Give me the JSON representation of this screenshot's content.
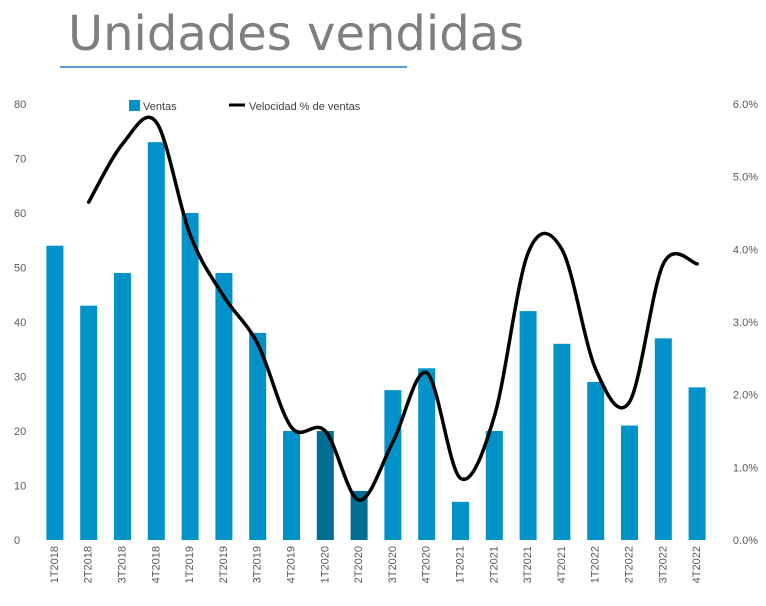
{
  "title": "Unidades vendidas",
  "chart_data": {
    "type": "bar",
    "title": "Unidades vendidas",
    "categories": [
      "1T2018",
      "2T2018",
      "3T2018",
      "4T2018",
      "1T2019",
      "2T2019",
      "3T2019",
      "4T2019",
      "1T2020",
      "2T2020",
      "3T2020",
      "4T2020",
      "1T2021",
      "2T2021",
      "3T2021",
      "4T2021",
      "1T2022",
      "2T2022",
      "3T2022",
      "4T2022"
    ],
    "series": [
      {
        "name": "Ventas",
        "type": "bar",
        "axis": "left",
        "color": "#0092c8",
        "values": [
          54,
          43,
          49,
          73,
          60,
          49,
          38,
          20,
          20,
          9,
          27.5,
          31.5,
          7,
          20,
          42,
          36,
          29,
          21,
          37,
          28
        ]
      },
      {
        "name": "Velocidad % de ventas",
        "type": "line",
        "axis": "right",
        "color": "#000000",
        "values": [
          null,
          4.65,
          5.45,
          5.75,
          4.2,
          3.35,
          2.7,
          1.55,
          1.5,
          0.55,
          1.35,
          2.3,
          0.85,
          1.7,
          3.95,
          4.0,
          2.35,
          1.9,
          3.8,
          3.8
        ]
      }
    ],
    "highlight_color": "#006d93",
    "highlight_indices": [
      8,
      9
    ],
    "y_left": {
      "ticks": [
        "0",
        "10",
        "20",
        "30",
        "40",
        "50",
        "60",
        "70",
        "80"
      ],
      "min": 0,
      "max": 80
    },
    "y_right": {
      "ticks": [
        "0.0%",
        "1.0%",
        "2.0%",
        "3.0%",
        "4.0%",
        "5.0%",
        "6.0%"
      ],
      "min": 0,
      "max": 6
    },
    "xlabel": "",
    "ylabel": "",
    "grid": false,
    "legend": "top"
  }
}
